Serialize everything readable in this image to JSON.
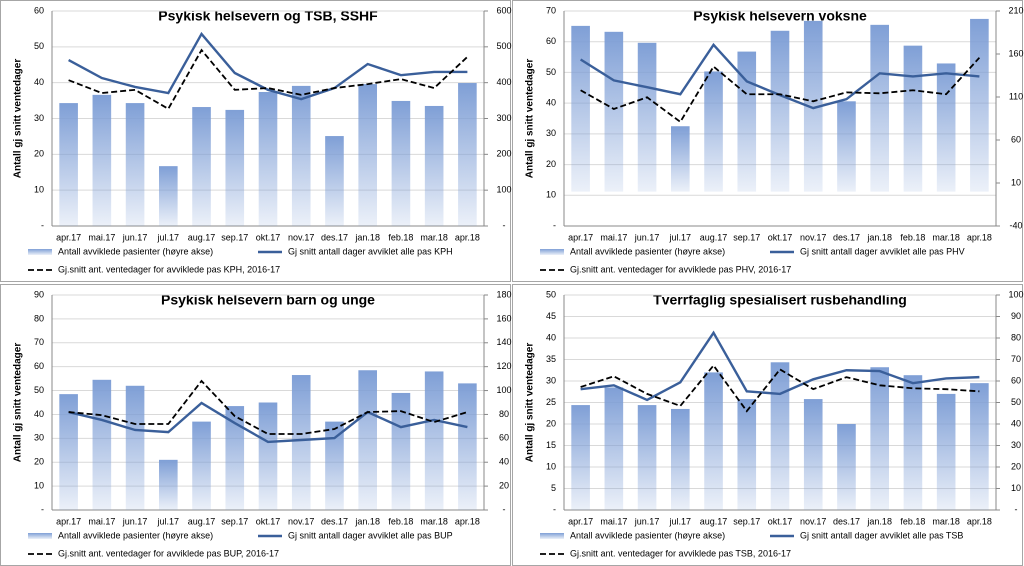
{
  "chart_data": [
    {
      "type": "combo",
      "title": "Psykisk helsevern og TSB, SSHF",
      "y_label": "Antall gj snitt ventedager",
      "categories": [
        "apr.17",
        "mai.17",
        "jun.17",
        "jul.17",
        "aug.17",
        "sep.17",
        "okt.17",
        "nov.17",
        "des.17",
        "jan.18",
        "feb.18",
        "mar.18",
        "apr.18"
      ],
      "ylim": [
        0,
        60
      ],
      "yticks": [
        {
          "value": 0,
          "label": "-"
        },
        10,
        20,
        30,
        40,
        50,
        60
      ],
      "y2lim": [
        0,
        600
      ],
      "y2ticks": [
        {
          "value": 0,
          "label": "-"
        },
        100,
        200,
        300,
        400,
        500,
        600
      ],
      "series": [
        {
          "name": "Antall avviklede pasienter (høyre akse)",
          "color": "#7f9fd6",
          "style": "bar",
          "axis": "y2",
          "values": [
            343,
            366,
            343,
            167,
            332,
            324,
            374,
            391,
            251,
            396,
            349,
            335,
            399
          ]
        },
        {
          "name": "Gj snitt antall dager avviklet alle pas KPH",
          "color": "#3a5f9a",
          "style": "solid",
          "values": [
            46.3,
            41.3,
            38.8,
            37.1,
            53.6,
            42.7,
            38,
            35.4,
            38.5,
            45.2,
            42.1,
            43,
            43
          ]
        },
        {
          "name": "Gj.snitt ant. ventedager for avviklede pas KPH, 2016-17",
          "color": "#000000",
          "style": "dashed",
          "values": [
            40.7,
            37.1,
            38,
            32.7,
            49.1,
            38,
            38.5,
            36.6,
            38.5,
            39.6,
            41,
            38.5,
            47.2
          ]
        }
      ]
    },
    {
      "type": "combo",
      "title": "Psykisk helsevern voksne",
      "y_label": "Antall gj snitt ventedager",
      "categories": [
        "apr.17",
        "mai.17",
        "jun.17",
        "jul.17",
        "aug.17",
        "sep.17",
        "okt.17",
        "nov.17",
        "des.17",
        "jan.18",
        "feb.18",
        "mar.18",
        "apr.18"
      ],
      "ylim": [
        0,
        70
      ],
      "yticks": [
        {
          "value": 0,
          "label": "-"
        },
        10,
        20,
        30,
        40,
        50,
        60,
        70
      ],
      "y2lim": [
        -40,
        210
      ],
      "y2ticks": [
        -40,
        10,
        60,
        110,
        160,
        210
      ],
      "series": [
        {
          "name": "Antall avviklede pasienter (høyre akse)",
          "color": "#7f9fd6",
          "style": "bar",
          "axis": "y2",
          "values": [
            192.7,
            185.8,
            173,
            76,
            139.7,
            162.8,
            187,
            198.5,
            105,
            193.9,
            169.7,
            149,
            200.8
          ]
        },
        {
          "name": "Gj snitt antall dager avviklet alle pas PHV",
          "color": "#3a5f9a",
          "style": "solid",
          "values": [
            54.2,
            47.4,
            45.2,
            42.9,
            59,
            47.1,
            42.6,
            38.4,
            41.3,
            49.7,
            48.7,
            49.7,
            48.7
          ]
        },
        {
          "name": "Gj.snitt ant. ventedager for avviklede pas PHV, 2016-17",
          "color": "#000000",
          "style": "dashed",
          "values": [
            44.2,
            38.1,
            41.9,
            33.9,
            51.9,
            42.9,
            42.9,
            40.6,
            43.5,
            43.2,
            44.2,
            42.9,
            54.8
          ]
        }
      ]
    },
    {
      "type": "combo",
      "title": "Psykisk helsevern barn og unge",
      "y_label": "Antall gj snitt ventedager",
      "categories": [
        "apr.17",
        "mai.17",
        "jun.17",
        "jul.17",
        "aug.17",
        "sep.17",
        "okt.17",
        "nov.17",
        "des.17",
        "jan.18",
        "feb.18",
        "mar.18",
        "apr.18"
      ],
      "ylim": [
        0,
        90
      ],
      "yticks": [
        {
          "value": 0,
          "label": "-"
        },
        10,
        20,
        30,
        40,
        50,
        60,
        70,
        80,
        90
      ],
      "y2lim": [
        0,
        180
      ],
      "y2ticks": [
        {
          "value": 0,
          "label": "-"
        },
        20,
        40,
        60,
        80,
        100,
        120,
        140,
        160,
        180
      ],
      "series": [
        {
          "name": "Antall avviklede pasienter (høyre akse)",
          "color": "#7f9fd6",
          "style": "bar",
          "axis": "y2",
          "values": [
            97,
            109,
            104,
            42,
            74,
            87,
            90,
            113,
            74,
            117,
            98,
            116,
            106
          ]
        },
        {
          "name": "Gj snitt antall dager avviklet alle pas BUP",
          "color": "#3a5f9a",
          "style": "solid",
          "values": [
            41,
            37.7,
            33.5,
            32.6,
            44.8,
            36.4,
            28.5,
            29.3,
            30.1,
            41,
            34.7,
            37.7,
            34.7
          ]
        },
        {
          "name": "Gj.snitt ant. ventedager for avviklede pas BUP, 2016-17",
          "color": "#000000",
          "style": "dashed",
          "values": [
            41,
            39.7,
            36,
            36,
            54,
            39.3,
            31.8,
            31.8,
            33.9,
            41,
            41.4,
            36.8,
            41
          ]
        }
      ]
    },
    {
      "type": "combo",
      "title": "Tverrfaglig spesialisert rusbehandling",
      "y_label": "Antall gj snitt ventedager",
      "categories": [
        "apr.17",
        "mai.17",
        "jun.17",
        "jul.17",
        "aug.17",
        "sep.17",
        "okt.17",
        "nov.17",
        "des.17",
        "jan.18",
        "feb.18",
        "mar.18",
        "apr.18"
      ],
      "ylim": [
        0,
        50
      ],
      "yticks": [
        {
          "value": 0,
          "label": "-"
        },
        5,
        10,
        15,
        20,
        25,
        30,
        35,
        40,
        45,
        50
      ],
      "y2lim": [
        0,
        100
      ],
      "y2ticks": [
        {
          "value": 0,
          "label": "-"
        },
        10,
        20,
        30,
        40,
        50,
        60,
        70,
        80,
        90,
        100
      ],
      "series": [
        {
          "name": "Antall avviklede pasienter (høyre akse)",
          "color": "#7f9fd6",
          "style": "bar",
          "axis": "y2",
          "values": [
            48.8,
            57,
            48.8,
            47,
            64,
            51.6,
            68.7,
            51.6,
            40,
            66.4,
            62.7,
            54,
            59
          ]
        },
        {
          "name": "Gj snitt antall dager avviklet alle pas TSB",
          "color": "#3a5f9a",
          "style": "solid",
          "values": [
            28.1,
            29,
            25.6,
            29.7,
            41.2,
            27.6,
            27,
            30.4,
            32.5,
            32.3,
            29.5,
            30.6,
            30.9
          ]
        },
        {
          "name": "Gj.snitt ant. ventedager for avviklede pas TSB, 2016-17",
          "color": "#000000",
          "style": "dashed",
          "values": [
            28.6,
            31.1,
            27,
            24.2,
            33.6,
            23,
            32.7,
            28.1,
            30.9,
            29,
            28.3,
            28.1,
            27.6
          ]
        }
      ]
    }
  ]
}
